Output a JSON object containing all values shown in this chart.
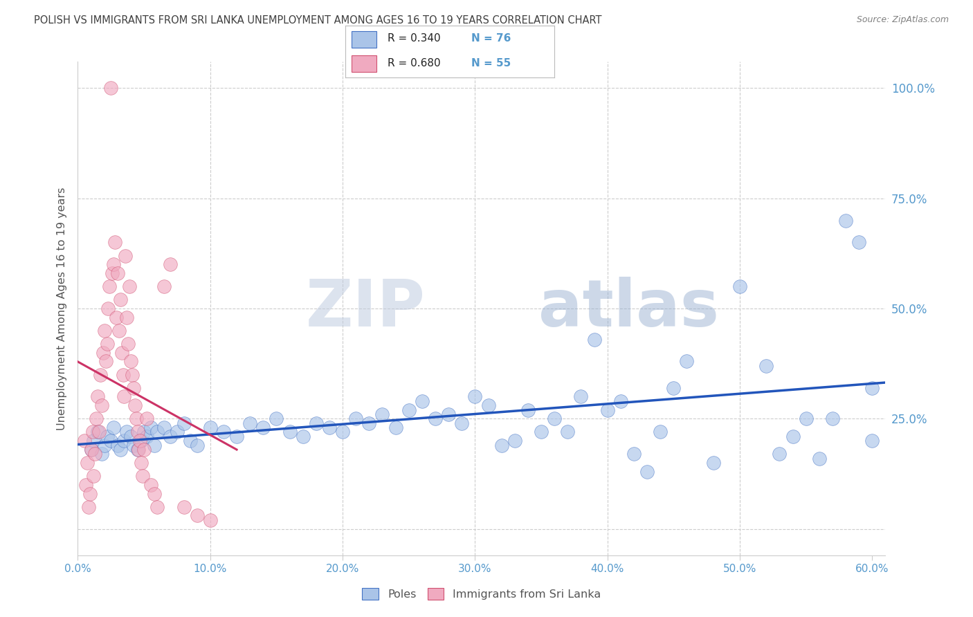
{
  "title": "POLISH VS IMMIGRANTS FROM SRI LANKA UNEMPLOYMENT AMONG AGES 16 TO 19 YEARS CORRELATION CHART",
  "source": "Source: ZipAtlas.com",
  "ylabel": "Unemployment Among Ages 16 to 19 years",
  "xlim": [
    0.0,
    0.61
  ],
  "ylim_low": -0.06,
  "ylim_high": 1.06,
  "yticks": [
    0.0,
    0.25,
    0.5,
    0.75,
    1.0
  ],
  "ytick_labels_right": [
    "",
    "25.0%",
    "50.0%",
    "75.0%",
    "100.0%"
  ],
  "xticks": [
    0.0,
    0.1,
    0.2,
    0.3,
    0.4,
    0.5,
    0.6
  ],
  "xtick_labels": [
    "0.0%",
    "10.0%",
    "20.0%",
    "30.0%",
    "40.0%",
    "50.0%",
    "60.0%"
  ],
  "poles_R": 0.34,
  "poles_N": 76,
  "sri_lanka_R": 0.68,
  "sri_lanka_N": 55,
  "poles_fill_color": "#aac4e8",
  "poles_edge_color": "#4472c4",
  "sri_lanka_fill_color": "#f0aac0",
  "sri_lanka_edge_color": "#d05070",
  "poles_line_color": "#2255bb",
  "sri_lanka_line_color": "#cc3366",
  "grid_color": "#cccccc",
  "title_color": "#404040",
  "source_color": "#808080",
  "axis_color": "#5599cc",
  "ylabel_color": "#555555",
  "watermark": "ZIPatlas",
  "watermark_color": "#c8d8ec",
  "background_color": "#ffffff",
  "legend_bg_color": "#ffffff",
  "legend_edge_color": "#bbbbbb",
  "poles_x": [
    0.01,
    0.012,
    0.015,
    0.018,
    0.02,
    0.022,
    0.025,
    0.027,
    0.03,
    0.032,
    0.035,
    0.037,
    0.04,
    0.042,
    0.045,
    0.048,
    0.05,
    0.052,
    0.055,
    0.058,
    0.06,
    0.065,
    0.07,
    0.075,
    0.08,
    0.085,
    0.09,
    0.1,
    0.11,
    0.12,
    0.13,
    0.14,
    0.15,
    0.16,
    0.17,
    0.18,
    0.19,
    0.2,
    0.21,
    0.22,
    0.23,
    0.24,
    0.25,
    0.26,
    0.27,
    0.28,
    0.29,
    0.3,
    0.31,
    0.32,
    0.33,
    0.34,
    0.35,
    0.36,
    0.37,
    0.38,
    0.39,
    0.4,
    0.41,
    0.42,
    0.43,
    0.44,
    0.45,
    0.46,
    0.48,
    0.5,
    0.52,
    0.53,
    0.54,
    0.55,
    0.56,
    0.57,
    0.58,
    0.59,
    0.6,
    0.6
  ],
  "poles_y": [
    0.18,
    0.2,
    0.22,
    0.17,
    0.19,
    0.21,
    0.2,
    0.23,
    0.19,
    0.18,
    0.2,
    0.22,
    0.21,
    0.19,
    0.18,
    0.2,
    0.22,
    0.21,
    0.23,
    0.19,
    0.22,
    0.23,
    0.21,
    0.22,
    0.24,
    0.2,
    0.19,
    0.23,
    0.22,
    0.21,
    0.24,
    0.23,
    0.25,
    0.22,
    0.21,
    0.24,
    0.23,
    0.22,
    0.25,
    0.24,
    0.26,
    0.23,
    0.27,
    0.29,
    0.25,
    0.26,
    0.24,
    0.3,
    0.28,
    0.19,
    0.2,
    0.27,
    0.22,
    0.25,
    0.22,
    0.3,
    0.43,
    0.27,
    0.29,
    0.17,
    0.13,
    0.22,
    0.32,
    0.38,
    0.15,
    0.55,
    0.37,
    0.17,
    0.21,
    0.25,
    0.16,
    0.25,
    0.7,
    0.65,
    0.2,
    0.32
  ],
  "sri_lanka_x": [
    0.005,
    0.006,
    0.007,
    0.008,
    0.009,
    0.01,
    0.011,
    0.012,
    0.013,
    0.014,
    0.015,
    0.016,
    0.017,
    0.018,
    0.019,
    0.02,
    0.021,
    0.022,
    0.023,
    0.024,
    0.025,
    0.026,
    0.027,
    0.028,
    0.029,
    0.03,
    0.031,
    0.032,
    0.033,
    0.034,
    0.035,
    0.036,
    0.037,
    0.038,
    0.039,
    0.04,
    0.041,
    0.042,
    0.043,
    0.044,
    0.045,
    0.046,
    0.047,
    0.048,
    0.049,
    0.05,
    0.052,
    0.055,
    0.058,
    0.06,
    0.065,
    0.07,
    0.08,
    0.09,
    0.1
  ],
  "sri_lanka_y": [
    0.2,
    0.1,
    0.15,
    0.05,
    0.08,
    0.18,
    0.22,
    0.12,
    0.17,
    0.25,
    0.3,
    0.22,
    0.35,
    0.28,
    0.4,
    0.45,
    0.38,
    0.42,
    0.5,
    0.55,
    1.0,
    0.58,
    0.6,
    0.65,
    0.48,
    0.58,
    0.45,
    0.52,
    0.4,
    0.35,
    0.3,
    0.62,
    0.48,
    0.42,
    0.55,
    0.38,
    0.35,
    0.32,
    0.28,
    0.25,
    0.22,
    0.18,
    0.2,
    0.15,
    0.12,
    0.18,
    0.25,
    0.1,
    0.08,
    0.05,
    0.55,
    0.6,
    0.05,
    0.03,
    0.02
  ]
}
